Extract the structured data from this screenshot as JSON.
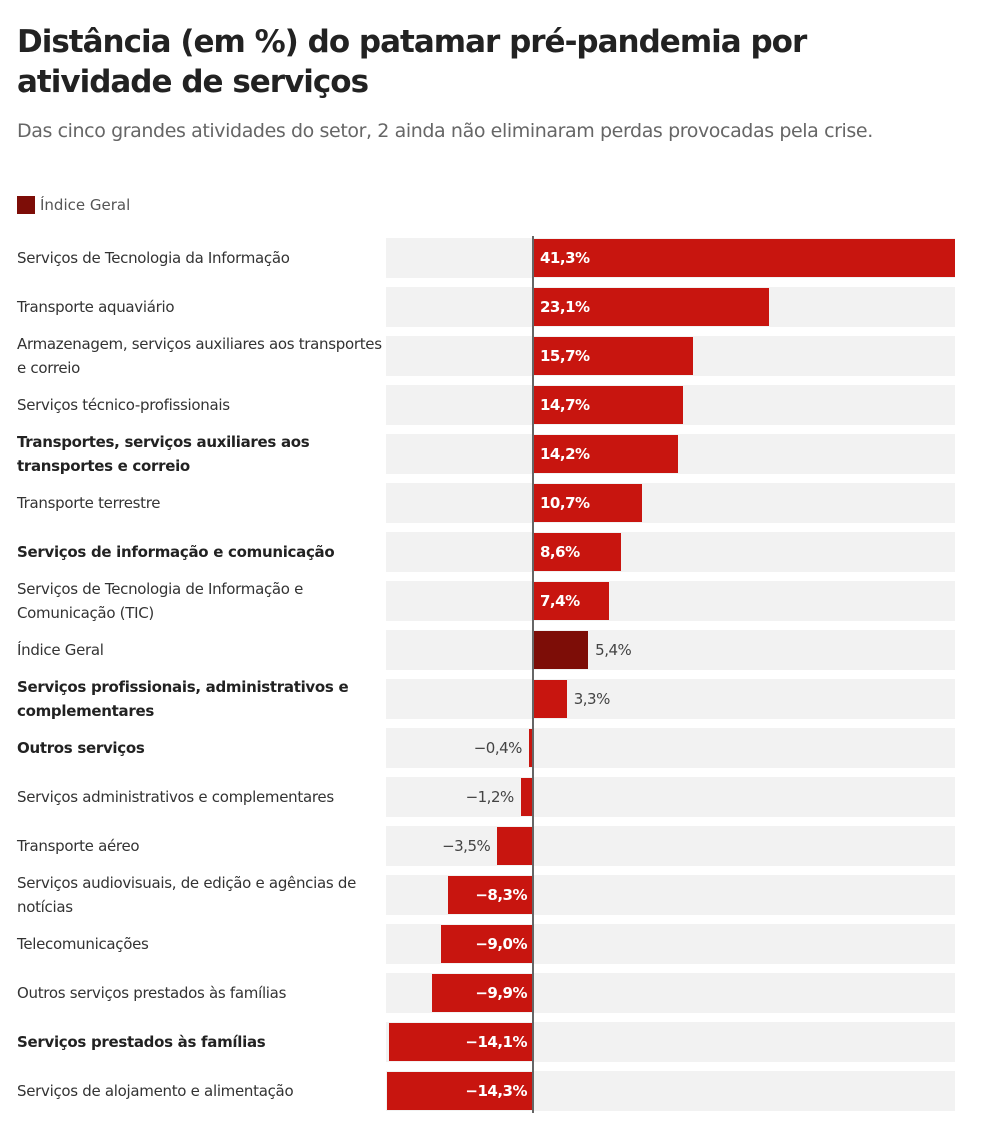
{
  "chart_data": {
    "type": "bar",
    "orientation": "horizontal",
    "title": "Distância (em %) do patamar pré-pandemia por atividade de serviços",
    "subtitle": "Das cinco grandes atividades do setor, 2 ainda não eliminaram perdas provocadas pela crise.",
    "legend": {
      "position": "top-left",
      "entries": [
        {
          "label": "Índice Geral",
          "color": "#7d0d07"
        }
      ]
    },
    "colors": {
      "default": "#c8150f",
      "highlight": "#7d0d07",
      "row_background": "#f2f2f2"
    },
    "grid": false,
    "xlim": [
      -14.3,
      41.3
    ],
    "categories": [
      {
        "label": "Serviços de Tecnologia da Informação",
        "value": 41.3,
        "value_label": "41,3%",
        "bold": false
      },
      {
        "label": "Transporte aquaviário",
        "value": 23.1,
        "value_label": "23,1%",
        "bold": false
      },
      {
        "label": "Armazenagem, serviços auxiliares aos transportes e correio",
        "value": 15.7,
        "value_label": "15,7%",
        "bold": false
      },
      {
        "label": "Serviços técnico-profissionais",
        "value": 14.7,
        "value_label": "14,7%",
        "bold": false
      },
      {
        "label": "Transportes, serviços auxiliares aos transportes e correio",
        "value": 14.2,
        "value_label": "14,2%",
        "bold": true
      },
      {
        "label": "Transporte terrestre",
        "value": 10.7,
        "value_label": "10,7%",
        "bold": false
      },
      {
        "label": "Serviços de informação e comunicação",
        "value": 8.6,
        "value_label": "8,6%",
        "bold": true
      },
      {
        "label": "Serviços de Tecnologia de Informação e Comunicação (TIC)",
        "value": 7.4,
        "value_label": "7,4%",
        "bold": false
      },
      {
        "label": "Índice Geral",
        "value": 5.4,
        "value_label": "5,4%",
        "bold": false,
        "highlight": true
      },
      {
        "label": "Serviços profissionais, administrativos e complementares",
        "value": 3.3,
        "value_label": "3,3%",
        "bold": true
      },
      {
        "label": "Outros serviços",
        "value": -0.4,
        "value_label": "−0,4%",
        "bold": true
      },
      {
        "label": "Serviços administrativos e complementares",
        "value": -1.2,
        "value_label": "−1,2%",
        "bold": false
      },
      {
        "label": "Transporte aéreo",
        "value": -3.5,
        "value_label": "−3,5%",
        "bold": false
      },
      {
        "label": "Serviços audiovisuais, de edição e agências de notícias",
        "value": -8.3,
        "value_label": "−8,3%",
        "bold": false
      },
      {
        "label": "Telecomunicações",
        "value": -9.0,
        "value_label": "−9,0%",
        "bold": false
      },
      {
        "label": "Outros serviços prestados às famílias",
        "value": -9.9,
        "value_label": "−9,9%",
        "bold": false
      },
      {
        "label": "Serviços prestados às famílias",
        "value": -14.1,
        "value_label": "−14,1%",
        "bold": true
      },
      {
        "label": "Serviços de alojamento e alimentação",
        "value": -14.3,
        "value_label": "−14,3%",
        "bold": false
      }
    ]
  }
}
